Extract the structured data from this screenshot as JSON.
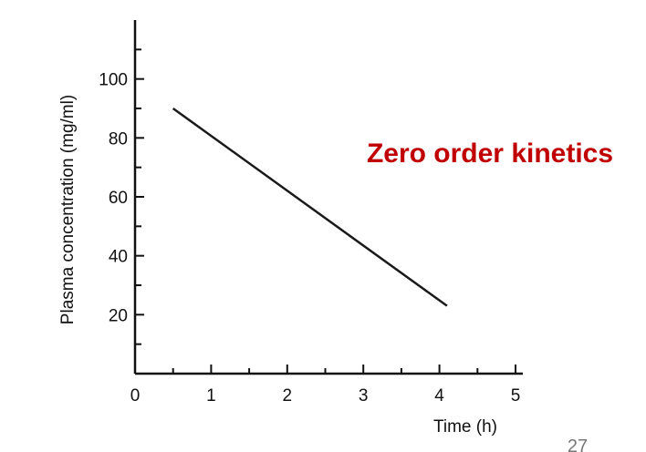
{
  "chart_data": {
    "type": "line",
    "title": "",
    "xlabel": "Time (h)",
    "ylabel": "Plasma concentration (mg/ml)",
    "xlim": [
      0,
      5
    ],
    "ylim": [
      0,
      120
    ],
    "x_ticks": [
      0,
      1,
      2,
      3,
      4,
      5
    ],
    "y_ticks": [
      20,
      40,
      60,
      80,
      100
    ],
    "series": [
      {
        "x": [
          0.5,
          4.1
        ],
        "y": [
          90,
          23
        ]
      }
    ],
    "annotation": "Zero order kinetics",
    "grid": false,
    "line_color": "#1a1a1a",
    "annotation_color": "#c00000"
  },
  "slide": {
    "page_number": "27"
  }
}
